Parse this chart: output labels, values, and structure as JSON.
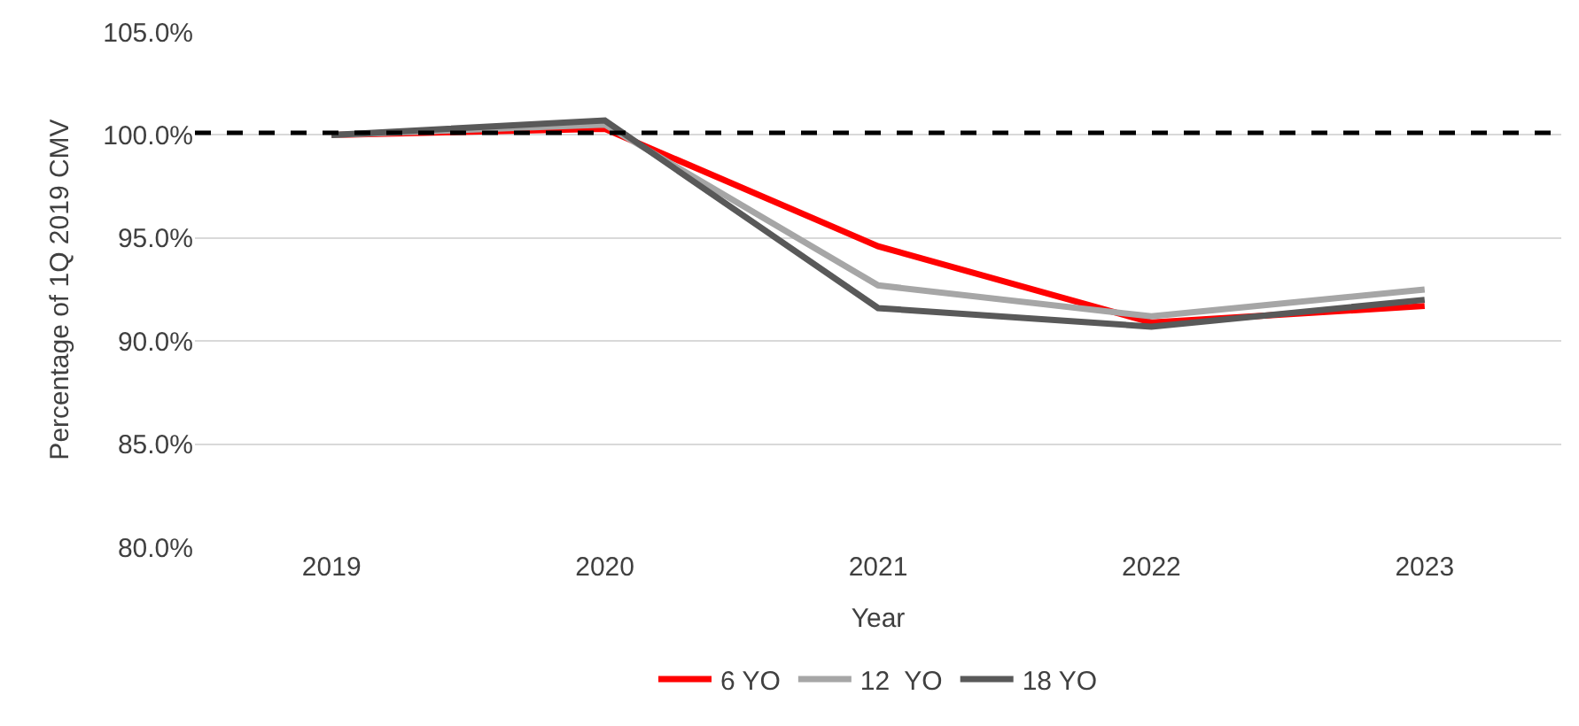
{
  "chart_data": {
    "type": "line",
    "xlabel": "Year",
    "ylabel": "Percentage of 1Q 2019 CMV",
    "categories": [
      "2019",
      "2020",
      "2021",
      "2022",
      "2023"
    ],
    "series": [
      {
        "name": "6 YO",
        "color": "#ff0000",
        "values": [
          100.0,
          100.3,
          94.6,
          90.9,
          91.7
        ]
      },
      {
        "name": "12  YO",
        "color": "#a6a6a6",
        "values": [
          100.0,
          100.5,
          92.7,
          91.2,
          92.5
        ]
      },
      {
        "name": "18 YO",
        "color": "#595959",
        "values": [
          100.0,
          100.7,
          91.6,
          90.7,
          92.0
        ]
      }
    ],
    "ylim": [
      80,
      105
    ],
    "yticks": [
      {
        "value": 80,
        "label": "80.0%"
      },
      {
        "value": 85,
        "label": "85.0%"
      },
      {
        "value": 90,
        "label": "90.0%"
      },
      {
        "value": 95,
        "label": "95.0%"
      },
      {
        "value": 100,
        "label": "100.0%"
      },
      {
        "value": 105,
        "label": "105.0%"
      }
    ],
    "ref_lines": [
      {
        "axis": "y",
        "value": 100.1,
        "color": "#000000",
        "line_style": "dashed"
      }
    ],
    "grid": "y",
    "legend": "bottom",
    "marker": "none",
    "line_style": "solid"
  }
}
